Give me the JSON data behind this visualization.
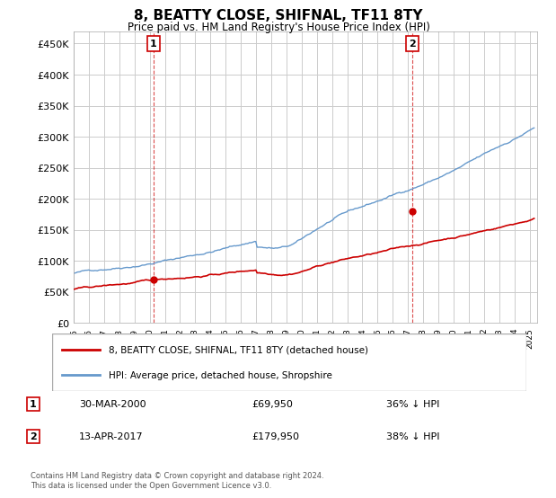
{
  "title": "8, BEATTY CLOSE, SHIFNAL, TF11 8TY",
  "subtitle": "Price paid vs. HM Land Registry's House Price Index (HPI)",
  "ylabel_ticks": [
    "£0",
    "£50K",
    "£100K",
    "£150K",
    "£200K",
    "£250K",
    "£300K",
    "£350K",
    "£400K",
    "£450K"
  ],
  "ytick_values": [
    0,
    50000,
    100000,
    150000,
    200000,
    250000,
    300000,
    350000,
    400000,
    450000
  ],
  "ylim": [
    0,
    470000
  ],
  "xlim_start": 1995.0,
  "xlim_end": 2025.5,
  "hpi_color": "#6699cc",
  "price_color": "#cc0000",
  "sale1_x": 2000.25,
  "sale1_y": 69950,
  "sale2_x": 2017.28,
  "sale2_y": 179950,
  "sale1_label": "30-MAR-2000",
  "sale1_price": "£69,950",
  "sale1_pct": "36% ↓ HPI",
  "sale2_label": "13-APR-2017",
  "sale2_price": "£179,950",
  "sale2_pct": "38% ↓ HPI",
  "legend1": "8, BEATTY CLOSE, SHIFNAL, TF11 8TY (detached house)",
  "legend2": "HPI: Average price, detached house, Shropshire",
  "footer": "Contains HM Land Registry data © Crown copyright and database right 2024.\nThis data is licensed under the Open Government Licence v3.0.",
  "background_color": "#ffffff",
  "grid_color": "#cccccc"
}
